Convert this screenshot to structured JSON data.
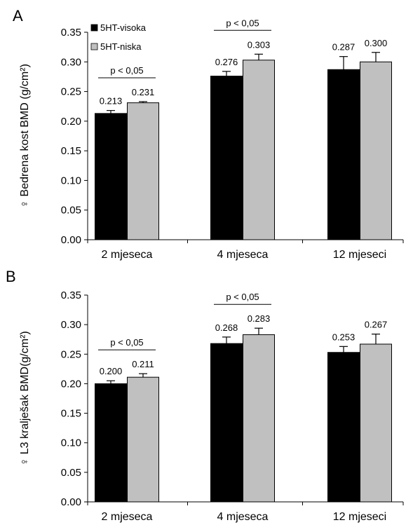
{
  "colors": {
    "high": "#000000",
    "low": "#c0c0c0"
  },
  "chart_data": [
    {
      "type": "bar",
      "panel_label": "A",
      "ylabel": "♀ Bedrena kost BMD (g/cm²)",
      "categories": [
        "2 mjeseca",
        "4 mjeseca",
        "12 mjeseci"
      ],
      "ylim": [
        0,
        0.35
      ],
      "yticks": [
        "0.00",
        "0.05",
        "0.10",
        "0.15",
        "0.20",
        "0.25",
        "0.30",
        "0.35"
      ],
      "legend": {
        "placement": "top-left",
        "entries": [
          "5HT-visoka",
          "5HT-niska"
        ]
      },
      "series": [
        {
          "name": "5HT-visoka",
          "values": [
            0.213,
            0.276,
            0.287
          ],
          "errors": [
            0.005,
            0.008,
            0.022
          ],
          "labels": [
            "0.213",
            "0.276",
            "0.287"
          ]
        },
        {
          "name": "5HT-niska",
          "values": [
            0.231,
            0.303,
            0.3
          ],
          "errors": [
            0.002,
            0.01,
            0.016
          ],
          "labels": [
            "0.231",
            "0.303",
            "0.300"
          ]
        }
      ],
      "annotations": [
        {
          "category": 0,
          "text": "p < 0,05"
        },
        {
          "category": 1,
          "text": "p < 0,05"
        }
      ]
    },
    {
      "type": "bar",
      "panel_label": "B",
      "ylabel": "♀ L3 kralješak BMD(g/cm²)",
      "categories": [
        "2 mjeseca",
        "4 mjeseca",
        "12 mjeseci"
      ],
      "ylim": [
        0,
        0.35
      ],
      "yticks": [
        "0.00",
        "0.05",
        "0.10",
        "0.15",
        "0.20",
        "0.25",
        "0.30",
        "0.35"
      ],
      "series": [
        {
          "name": "5HT-visoka",
          "values": [
            0.2,
            0.268,
            0.253
          ],
          "errors": [
            0.005,
            0.011,
            0.01
          ],
          "labels": [
            "0.200",
            "0.268",
            "0.253"
          ]
        },
        {
          "name": "5HT-niska",
          "values": [
            0.211,
            0.283,
            0.267
          ],
          "errors": [
            0.006,
            0.011,
            0.017
          ],
          "labels": [
            "0.211",
            "0.283",
            "0.267"
          ]
        }
      ],
      "annotations": [
        {
          "category": 0,
          "text": "p < 0,05"
        },
        {
          "category": 1,
          "text": "p < 0,05"
        }
      ]
    }
  ]
}
